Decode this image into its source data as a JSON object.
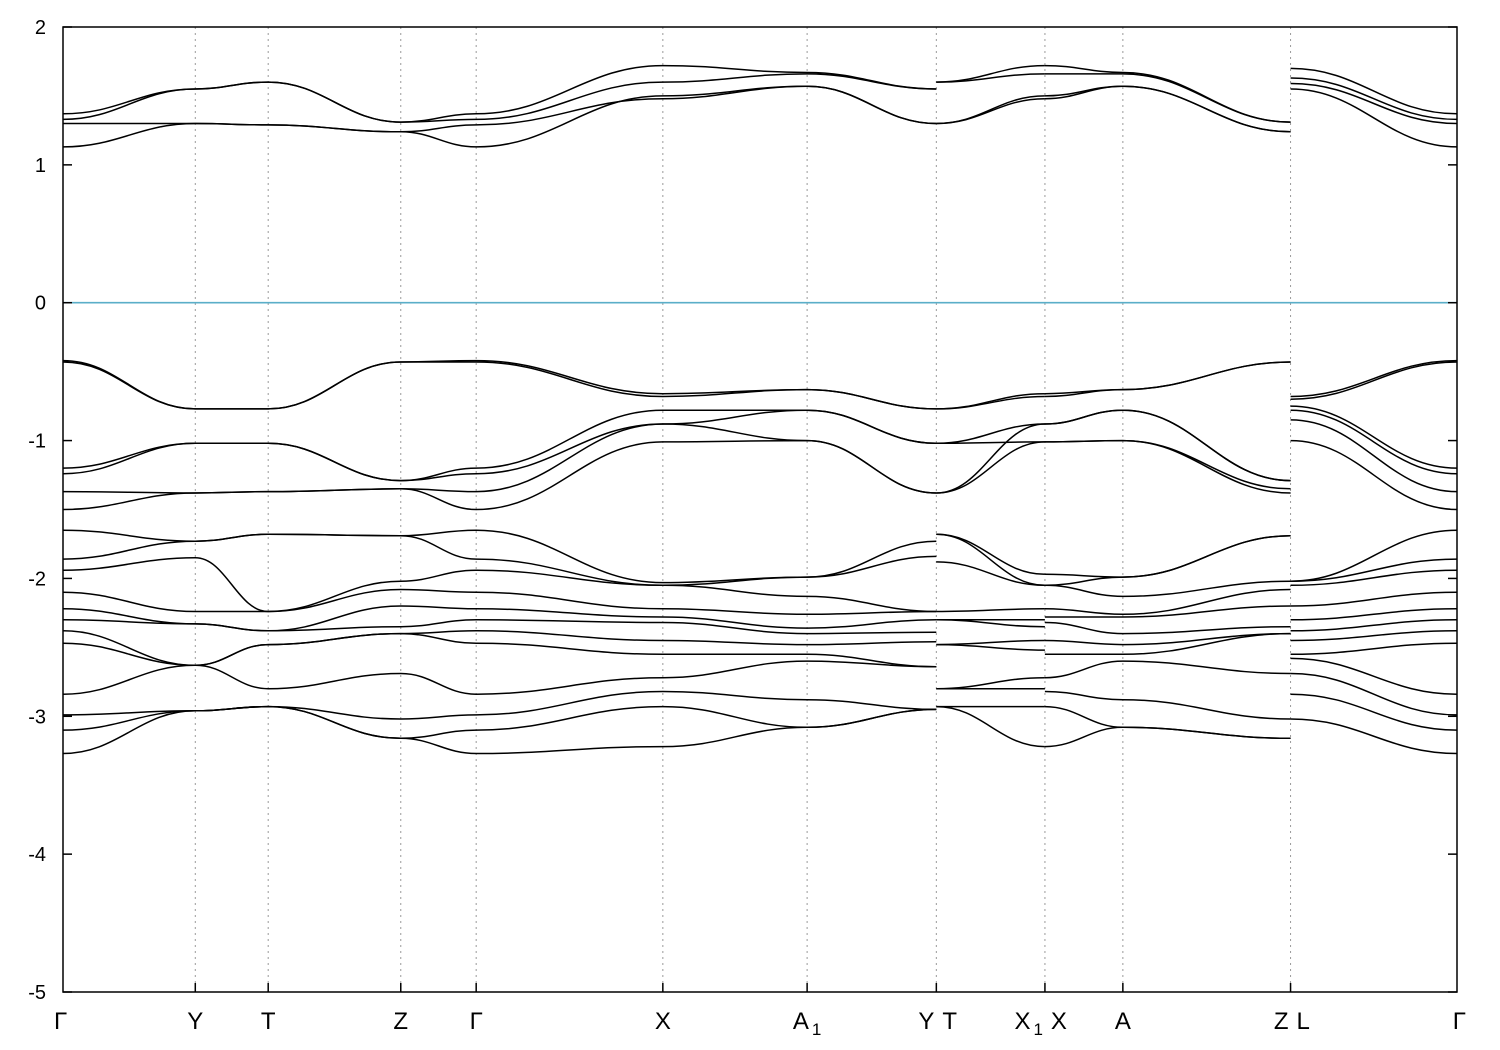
{
  "chart_data": {
    "type": "line",
    "title": "",
    "xlabel": "",
    "ylabel": "",
    "ylim": [
      -5,
      2
    ],
    "yticks": [
      2,
      1,
      0,
      -1,
      -2,
      -3,
      -4,
      -5
    ],
    "ytick_labels": [
      "2",
      "1",
      "0",
      "-1",
      "-2",
      "-3",
      "-4",
      "-5"
    ],
    "fermi_level": {
      "value": 0,
      "color": "#5aaec8"
    },
    "grid": "vertical-dotted-at-high-symmetry-points",
    "line_color": "#000000",
    "points": [
      {
        "label": "Γ",
        "sub": "",
        "x": 0
      },
      {
        "label": "Y",
        "sub": "",
        "x": 0.0949
      },
      {
        "label": "T",
        "sub": "",
        "x": 0.1472
      },
      {
        "label": "Z",
        "sub": "",
        "x": 0.2423
      },
      {
        "label": "Γ",
        "sub": "",
        "x": 0.2964
      },
      {
        "label": "X",
        "sub": "",
        "x": 0.4303
      },
      {
        "label": "A",
        "sub": "1",
        "x": 0.5338
      },
      {
        "label": "Y",
        "sub": "",
        "x": 0.6265
      },
      {
        "label": "T",
        "sub": "",
        "x": 0.6265
      },
      {
        "label": "X",
        "sub": "1",
        "x": 0.7044
      },
      {
        "label": "X",
        "sub": "",
        "x": 0.7044
      },
      {
        "label": "A",
        "sub": "",
        "x": 0.7603
      },
      {
        "label": "Z",
        "sub": "",
        "x": 0.8806
      },
      {
        "label": "L",
        "sub": "",
        "x": 0.8806
      },
      {
        "label": "Γ",
        "sub": "",
        "x": 1.0
      }
    ],
    "segments": [
      {
        "path": "Γ–Y–T–Z–Γ–X–A1–Y",
        "x": [
          0,
          0.0949,
          0.1472,
          0.2423,
          0.2964,
          0.4303,
          0.5338,
          0.6265
        ],
        "bands": [
          [
            1.13,
            1.3,
            1.29,
            1.24,
            1.13,
            1.5,
            1.57,
            1.3
          ],
          [
            1.3,
            1.3,
            1.29,
            1.24,
            1.29,
            1.48,
            1.57,
            1.3
          ],
          [
            1.33,
            1.55,
            1.6,
            1.31,
            1.33,
            1.6,
            1.66,
            1.55
          ],
          [
            1.37,
            1.55,
            1.6,
            1.31,
            1.37,
            1.72,
            1.67,
            1.55
          ],
          [
            -0.42,
            -0.77,
            -0.77,
            -0.43,
            -0.42,
            -0.66,
            -0.63,
            -0.77
          ],
          [
            -0.43,
            -0.77,
            -0.77,
            -0.43,
            -0.43,
            -0.68,
            -0.63,
            -0.77
          ],
          [
            -1.2,
            -1.02,
            -1.02,
            -1.29,
            -1.2,
            -0.78,
            -0.78,
            -1.02
          ],
          [
            -1.24,
            -1.02,
            -1.02,
            -1.29,
            -1.24,
            -0.88,
            -0.78,
            -1.02
          ],
          [
            -1.37,
            -1.38,
            -1.37,
            -1.35,
            -1.37,
            -0.88,
            -1.0,
            -1.38
          ],
          [
            -1.5,
            -1.38,
            -1.37,
            -1.35,
            -1.5,
            -1.01,
            -1.0,
            -1.38
          ],
          [
            -1.65,
            -1.73,
            -1.68,
            -1.69,
            -1.65,
            -2.03,
            -1.99,
            -1.73
          ],
          [
            -1.86,
            -1.73,
            -1.68,
            -1.69,
            -1.86,
            -2.05,
            -1.99,
            -1.84
          ],
          [
            -1.94,
            -1.85,
            -2.24,
            -2.02,
            -1.94,
            -2.05,
            -2.13,
            -2.24
          ],
          [
            -2.1,
            -2.24,
            -2.24,
            -2.08,
            -2.1,
            -2.22,
            -2.26,
            -2.24
          ],
          [
            -2.22,
            -2.33,
            -2.38,
            -2.2,
            -2.22,
            -2.28,
            -2.36,
            -2.3
          ],
          [
            -2.3,
            -2.33,
            -2.38,
            -2.35,
            -2.3,
            -2.32,
            -2.4,
            -2.39
          ],
          [
            -2.38,
            -2.63,
            -2.48,
            -2.4,
            -2.38,
            -2.45,
            -2.48,
            -2.46
          ],
          [
            -2.47,
            -2.63,
            -2.48,
            -2.4,
            -2.47,
            -2.55,
            -2.55,
            -2.64
          ],
          [
            -2.84,
            -2.63,
            -2.8,
            -2.69,
            -2.84,
            -2.72,
            -2.6,
            -2.64
          ],
          [
            -2.99,
            -2.96,
            -2.93,
            -3.02,
            -2.99,
            -2.82,
            -2.88,
            -2.95
          ],
          [
            -3.1,
            -2.96,
            -2.93,
            -3.16,
            -3.1,
            -2.93,
            -3.08,
            -2.95
          ],
          [
            -3.27,
            -2.96,
            -2.93,
            -3.16,
            -3.27,
            -3.22,
            -3.08,
            -2.95
          ]
        ]
      },
      {
        "path": "T–X1",
        "x": [
          0.6265,
          0.7044
        ],
        "bands": [
          [
            1.3,
            1.48
          ],
          [
            1.3,
            1.5
          ],
          [
            1.6,
            1.66
          ],
          [
            1.6,
            1.72
          ],
          [
            -0.77,
            -0.66
          ],
          [
            -0.77,
            -0.68
          ],
          [
            -1.02,
            -0.88
          ],
          [
            -1.02,
            -1.01
          ],
          [
            -1.38,
            -0.88
          ],
          [
            -1.38,
            -1.01
          ],
          [
            -1.68,
            -1.97
          ],
          [
            -1.68,
            -2.05
          ],
          [
            -1.88,
            -2.05
          ],
          [
            -2.24,
            -2.22
          ],
          [
            -2.3,
            -2.3
          ],
          [
            -2.3,
            -2.35
          ],
          [
            -2.48,
            -2.45
          ],
          [
            -2.48,
            -2.52
          ],
          [
            -2.8,
            -2.72
          ],
          [
            -2.8,
            -2.8
          ],
          [
            -2.93,
            -2.93
          ],
          [
            -2.93,
            -3.22
          ]
        ]
      },
      {
        "path": "X–A–Z",
        "x": [
          0.7044,
          0.7603,
          0.8806
        ],
        "bands": [
          [
            1.48,
            1.57,
            1.24
          ],
          [
            1.5,
            1.57,
            1.24
          ],
          [
            1.66,
            1.66,
            1.31
          ],
          [
            1.72,
            1.67,
            1.31
          ],
          [
            -0.66,
            -0.63,
            -0.43
          ],
          [
            -0.68,
            -0.63,
            -0.43
          ],
          [
            -0.88,
            -0.78,
            -1.29
          ],
          [
            -0.88,
            -0.78,
            -1.29
          ],
          [
            -1.01,
            -1.0,
            -1.35
          ],
          [
            -1.01,
            -1.0,
            -1.38
          ],
          [
            -1.97,
            -1.99,
            -1.69
          ],
          [
            -2.05,
            -1.99,
            -1.69
          ],
          [
            -2.05,
            -2.13,
            -2.02
          ],
          [
            -2.22,
            -2.26,
            -2.08
          ],
          [
            -2.28,
            -2.28,
            -2.2
          ],
          [
            -2.32,
            -2.4,
            -2.35
          ],
          [
            -2.45,
            -2.48,
            -2.4
          ],
          [
            -2.55,
            -2.55,
            -2.4
          ],
          [
            -2.72,
            -2.6,
            -2.69
          ],
          [
            -2.82,
            -2.88,
            -3.02
          ],
          [
            -2.93,
            -3.08,
            -3.16
          ],
          [
            -3.22,
            -3.08,
            -3.16
          ]
        ]
      },
      {
        "path": "L–Γ",
        "x": [
          0.8806,
          1.0
        ],
        "bands": [
          [
            1.55,
            1.13
          ],
          [
            1.59,
            1.3
          ],
          [
            1.63,
            1.33
          ],
          [
            1.7,
            1.37
          ],
          [
            -0.68,
            -0.42
          ],
          [
            -0.7,
            -0.43
          ],
          [
            -0.75,
            -1.2
          ],
          [
            -0.78,
            -1.24
          ],
          [
            -0.85,
            -1.37
          ],
          [
            -1.0,
            -1.5
          ],
          [
            -2.02,
            -1.65
          ],
          [
            -2.02,
            -1.86
          ],
          [
            -2.05,
            -1.94
          ],
          [
            -2.2,
            -2.1
          ],
          [
            -2.3,
            -2.22
          ],
          [
            -2.38,
            -2.3
          ],
          [
            -2.45,
            -2.38
          ],
          [
            -2.55,
            -2.47
          ],
          [
            -2.58,
            -2.84
          ],
          [
            -2.69,
            -2.99
          ],
          [
            -2.84,
            -3.1
          ],
          [
            -3.02,
            -3.27
          ]
        ]
      }
    ]
  }
}
